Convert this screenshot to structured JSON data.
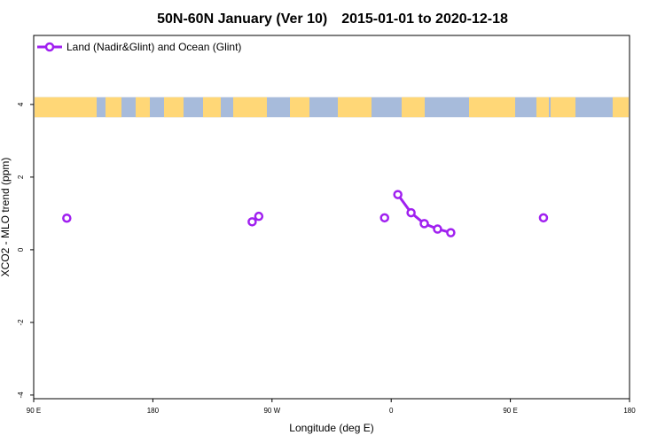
{
  "chart_data": {
    "type": "line",
    "title_left": "50N-60N January (Ver 10)",
    "title_right": "2015-01-01 to 2020-12-18",
    "xlabel": "Longitude (deg E)",
    "ylabel": "XCO2 - MLO trend (ppm)",
    "xlim": [
      90,
      450
    ],
    "ylim": [
      -4.1,
      5.9
    ],
    "x_ticks": [
      {
        "value": 90,
        "label": "90 E"
      },
      {
        "value": 180,
        "label": "180"
      },
      {
        "value": 270,
        "label": "90 W"
      },
      {
        "value": 360,
        "label": "0"
      },
      {
        "value": 450,
        "label": "90 E"
      },
      {
        "value": 540,
        "label": "180"
      }
    ],
    "y_ticks": [
      {
        "value": -4,
        "label": "-4"
      },
      {
        "value": -2,
        "label": "-2"
      },
      {
        "value": 0,
        "label": "0"
      },
      {
        "value": 2,
        "label": "2"
      },
      {
        "value": 4,
        "label": "4"
      }
    ],
    "legend": {
      "position": "top-left"
    },
    "series": [
      {
        "name": "Land (Nadir&Glint) and Ocean (Glint)",
        "color": "#a020f0",
        "segments": [
          [
            {
              "x": 115,
              "y": 0.87
            }
          ],
          [
            {
              "x": 255,
              "y": 0.77
            },
            {
              "x": 260,
              "y": 0.92
            }
          ],
          [
            {
              "x": 355,
              "y": 0.88
            }
          ],
          [
            {
              "x": 365,
              "y": 1.52
            },
            {
              "x": 375,
              "y": 1.02
            },
            {
              "x": 385,
              "y": 0.72
            },
            {
              "x": 395,
              "y": 0.57
            },
            {
              "x": 405,
              "y": 0.47
            }
          ],
          [
            {
              "x": 475,
              "y": 0.88
            }
          ]
        ]
      }
    ],
    "map_band": {
      "y_range": [
        3.65,
        4.2
      ],
      "ocean_color": "#a7bbdb",
      "land_color": "#ffd777"
    }
  }
}
